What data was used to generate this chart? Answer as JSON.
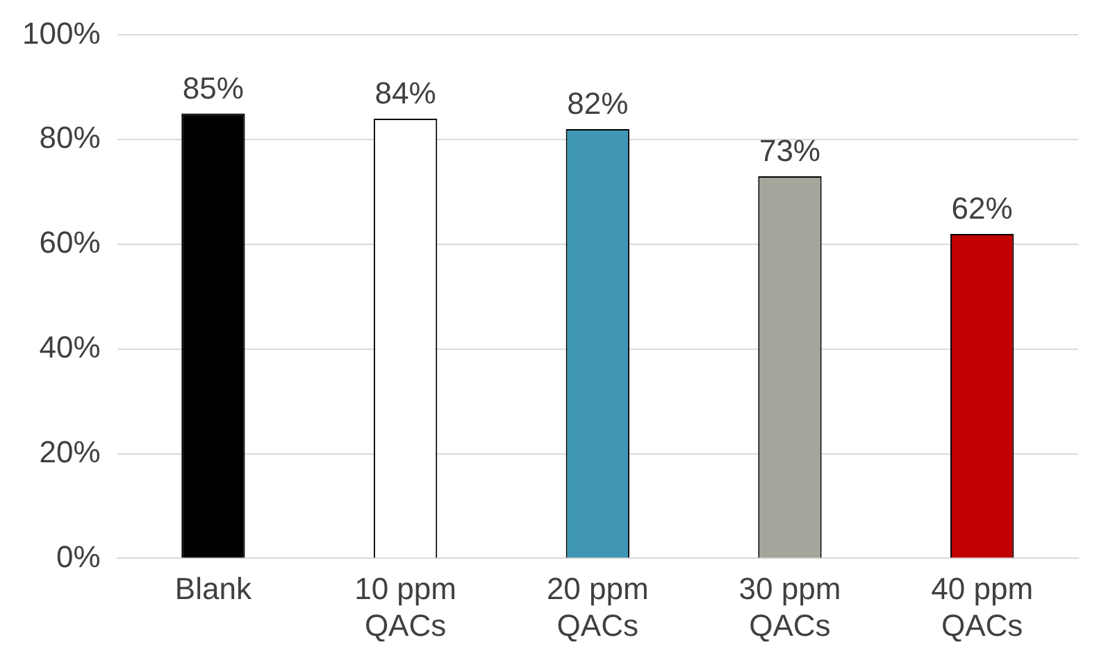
{
  "chart_data": {
    "type": "bar",
    "categories": [
      "Blank",
      "10 ppm QACs",
      "20 ppm QACs",
      "30 ppm QACs",
      "40 ppm QACs"
    ],
    "values": [
      85,
      84,
      82,
      73,
      62
    ],
    "colors": [
      "#000000",
      "#ffffff",
      "#3f97b5",
      "#a5a59b",
      "#c00000"
    ],
    "value_labels": [
      "85%",
      "84%",
      "82%",
      "73%",
      "62%"
    ],
    "ylim": [
      0,
      100
    ],
    "yticks": [
      {
        "value": 0,
        "label": "0%"
      },
      {
        "value": 20,
        "label": "20%"
      },
      {
        "value": 40,
        "label": "40%"
      },
      {
        "value": 60,
        "label": "60%"
      },
      {
        "value": 80,
        "label": "80%"
      },
      {
        "value": 100,
        "label": "100%"
      }
    ],
    "grid": "y",
    "legend": false
  }
}
